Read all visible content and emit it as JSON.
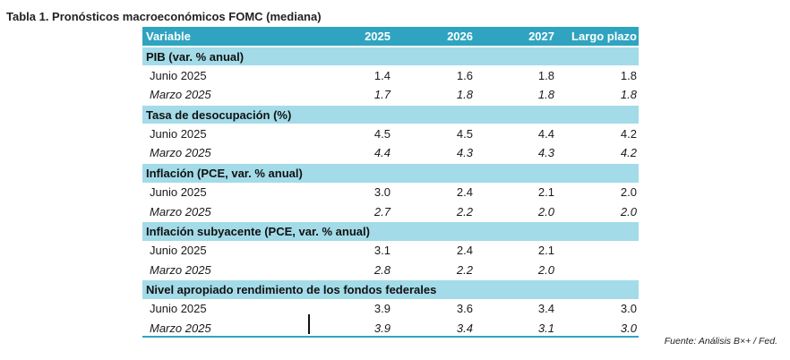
{
  "title": "Tabla 1. Pronósticos macroeconómicos FOMC (mediana)",
  "header": {
    "label": "Variable",
    "cols": [
      "2025",
      "2026",
      "2027",
      "Largo plazo"
    ]
  },
  "sections": [
    {
      "name": "PIB (var. % anual)",
      "rows": [
        {
          "label": "Junio 2025",
          "values": [
            "1.4",
            "1.6",
            "1.8",
            "1.8"
          ]
        },
        {
          "label": "Marzo 2025",
          "values": [
            "1.7",
            "1.8",
            "1.8",
            "1.8"
          ]
        }
      ]
    },
    {
      "name": "Tasa de desocupación (%)",
      "rows": [
        {
          "label": "Junio 2025",
          "values": [
            "4.5",
            "4.5",
            "4.4",
            "4.2"
          ]
        },
        {
          "label": "Marzo 2025",
          "values": [
            "4.4",
            "4.3",
            "4.3",
            "4.2"
          ]
        }
      ]
    },
    {
      "name": "Inflación (PCE, var. % anual)",
      "rows": [
        {
          "label": "Junio 2025",
          "values": [
            "3.0",
            "2.4",
            "2.1",
            "2.0"
          ]
        },
        {
          "label": "Marzo 2025",
          "values": [
            "2.7",
            "2.2",
            "2.0",
            "2.0"
          ]
        }
      ]
    },
    {
      "name": "Inflación subyacente (PCE, var. % anual)",
      "rows": [
        {
          "label": "Junio 2025",
          "values": [
            "3.1",
            "2.4",
            "2.1",
            ""
          ]
        },
        {
          "label": "Marzo 2025",
          "values": [
            "2.8",
            "2.2",
            "2.0",
            ""
          ]
        }
      ]
    },
    {
      "name": "Nivel apropiado rendimiento de los fondos federales",
      "rows": [
        {
          "label": "Junio 2025",
          "values": [
            "3.9",
            "3.6",
            "3.4",
            "3.0"
          ]
        },
        {
          "label": "Marzo 2025",
          "values": [
            "3.9",
            "3.4",
            "3.1",
            "3.0"
          ]
        }
      ]
    }
  ],
  "source": "Fuente: Análisis B×+ / Fed."
}
